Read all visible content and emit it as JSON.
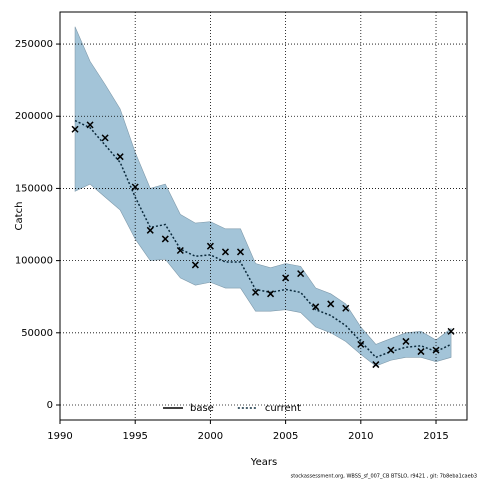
{
  "chart_data": {
    "type": "line",
    "xlabel": "Years",
    "ylabel": "Catch",
    "x": [
      1991,
      1992,
      1993,
      1994,
      1995,
      1996,
      1997,
      1998,
      1999,
      2000,
      2001,
      2002,
      2003,
      2004,
      2005,
      2006,
      2007,
      2008,
      2009,
      2010,
      2011,
      2012,
      2013,
      2014,
      2015,
      2016
    ],
    "series": [
      {
        "name": "base",
        "color": "#000000",
        "dash": "none",
        "values": [
          null,
          null,
          null,
          null,
          null,
          null,
          null,
          null,
          null,
          null,
          null,
          null,
          null,
          null,
          null,
          null,
          null,
          null,
          null,
          null,
          null,
          null,
          null,
          null,
          null,
          null
        ]
      },
      {
        "name": "current",
        "color": "#0b2a3c",
        "dash": "2,2",
        "values": [
          197000,
          192000,
          180000,
          168000,
          144000,
          123000,
          125000,
          108000,
          103000,
          104000,
          99000,
          99000,
          80000,
          78000,
          80000,
          78000,
          66000,
          62000,
          55000,
          44000,
          33000,
          37000,
          40000,
          41000,
          37000,
          42000
        ]
      }
    ],
    "band": {
      "color": "#a3c4d8",
      "upper": [
        262000,
        238000,
        222000,
        205000,
        175000,
        150000,
        153000,
        132000,
        126000,
        127000,
        122000,
        122000,
        98000,
        95000,
        98000,
        96000,
        81000,
        77000,
        70000,
        54000,
        42000,
        46000,
        50000,
        51000,
        45000,
        53000
      ],
      "lower": [
        148000,
        153000,
        144000,
        135000,
        115000,
        100000,
        101000,
        88000,
        83000,
        85000,
        81000,
        81000,
        65000,
        65000,
        66000,
        64000,
        54000,
        50000,
        44000,
        35000,
        27000,
        31000,
        33000,
        33000,
        30000,
        33000
      ]
    },
    "observations": {
      "color": "#000000",
      "values": [
        191000,
        194000,
        185000,
        172000,
        151000,
        121000,
        115000,
        107000,
        97000,
        110000,
        106000,
        106000,
        78000,
        77000,
        88000,
        91000,
        68000,
        70000,
        67000,
        42000,
        28000,
        38000,
        44000,
        37000,
        38000,
        51000
      ]
    },
    "xlim": [
      1990,
      2017.06
    ],
    "ylim": [
      -10400,
      272200
    ],
    "xticks": [
      1990,
      1995,
      2000,
      2005,
      2010,
      2015
    ],
    "yticks": [
      0,
      50000,
      100000,
      150000,
      200000,
      250000
    ],
    "grid": true,
    "legend": "bottom",
    "footnote": "stockassessment.org, WBSS_sf_007_CB BTSLO, r9421 , git: 7b8eba1caeb3"
  }
}
